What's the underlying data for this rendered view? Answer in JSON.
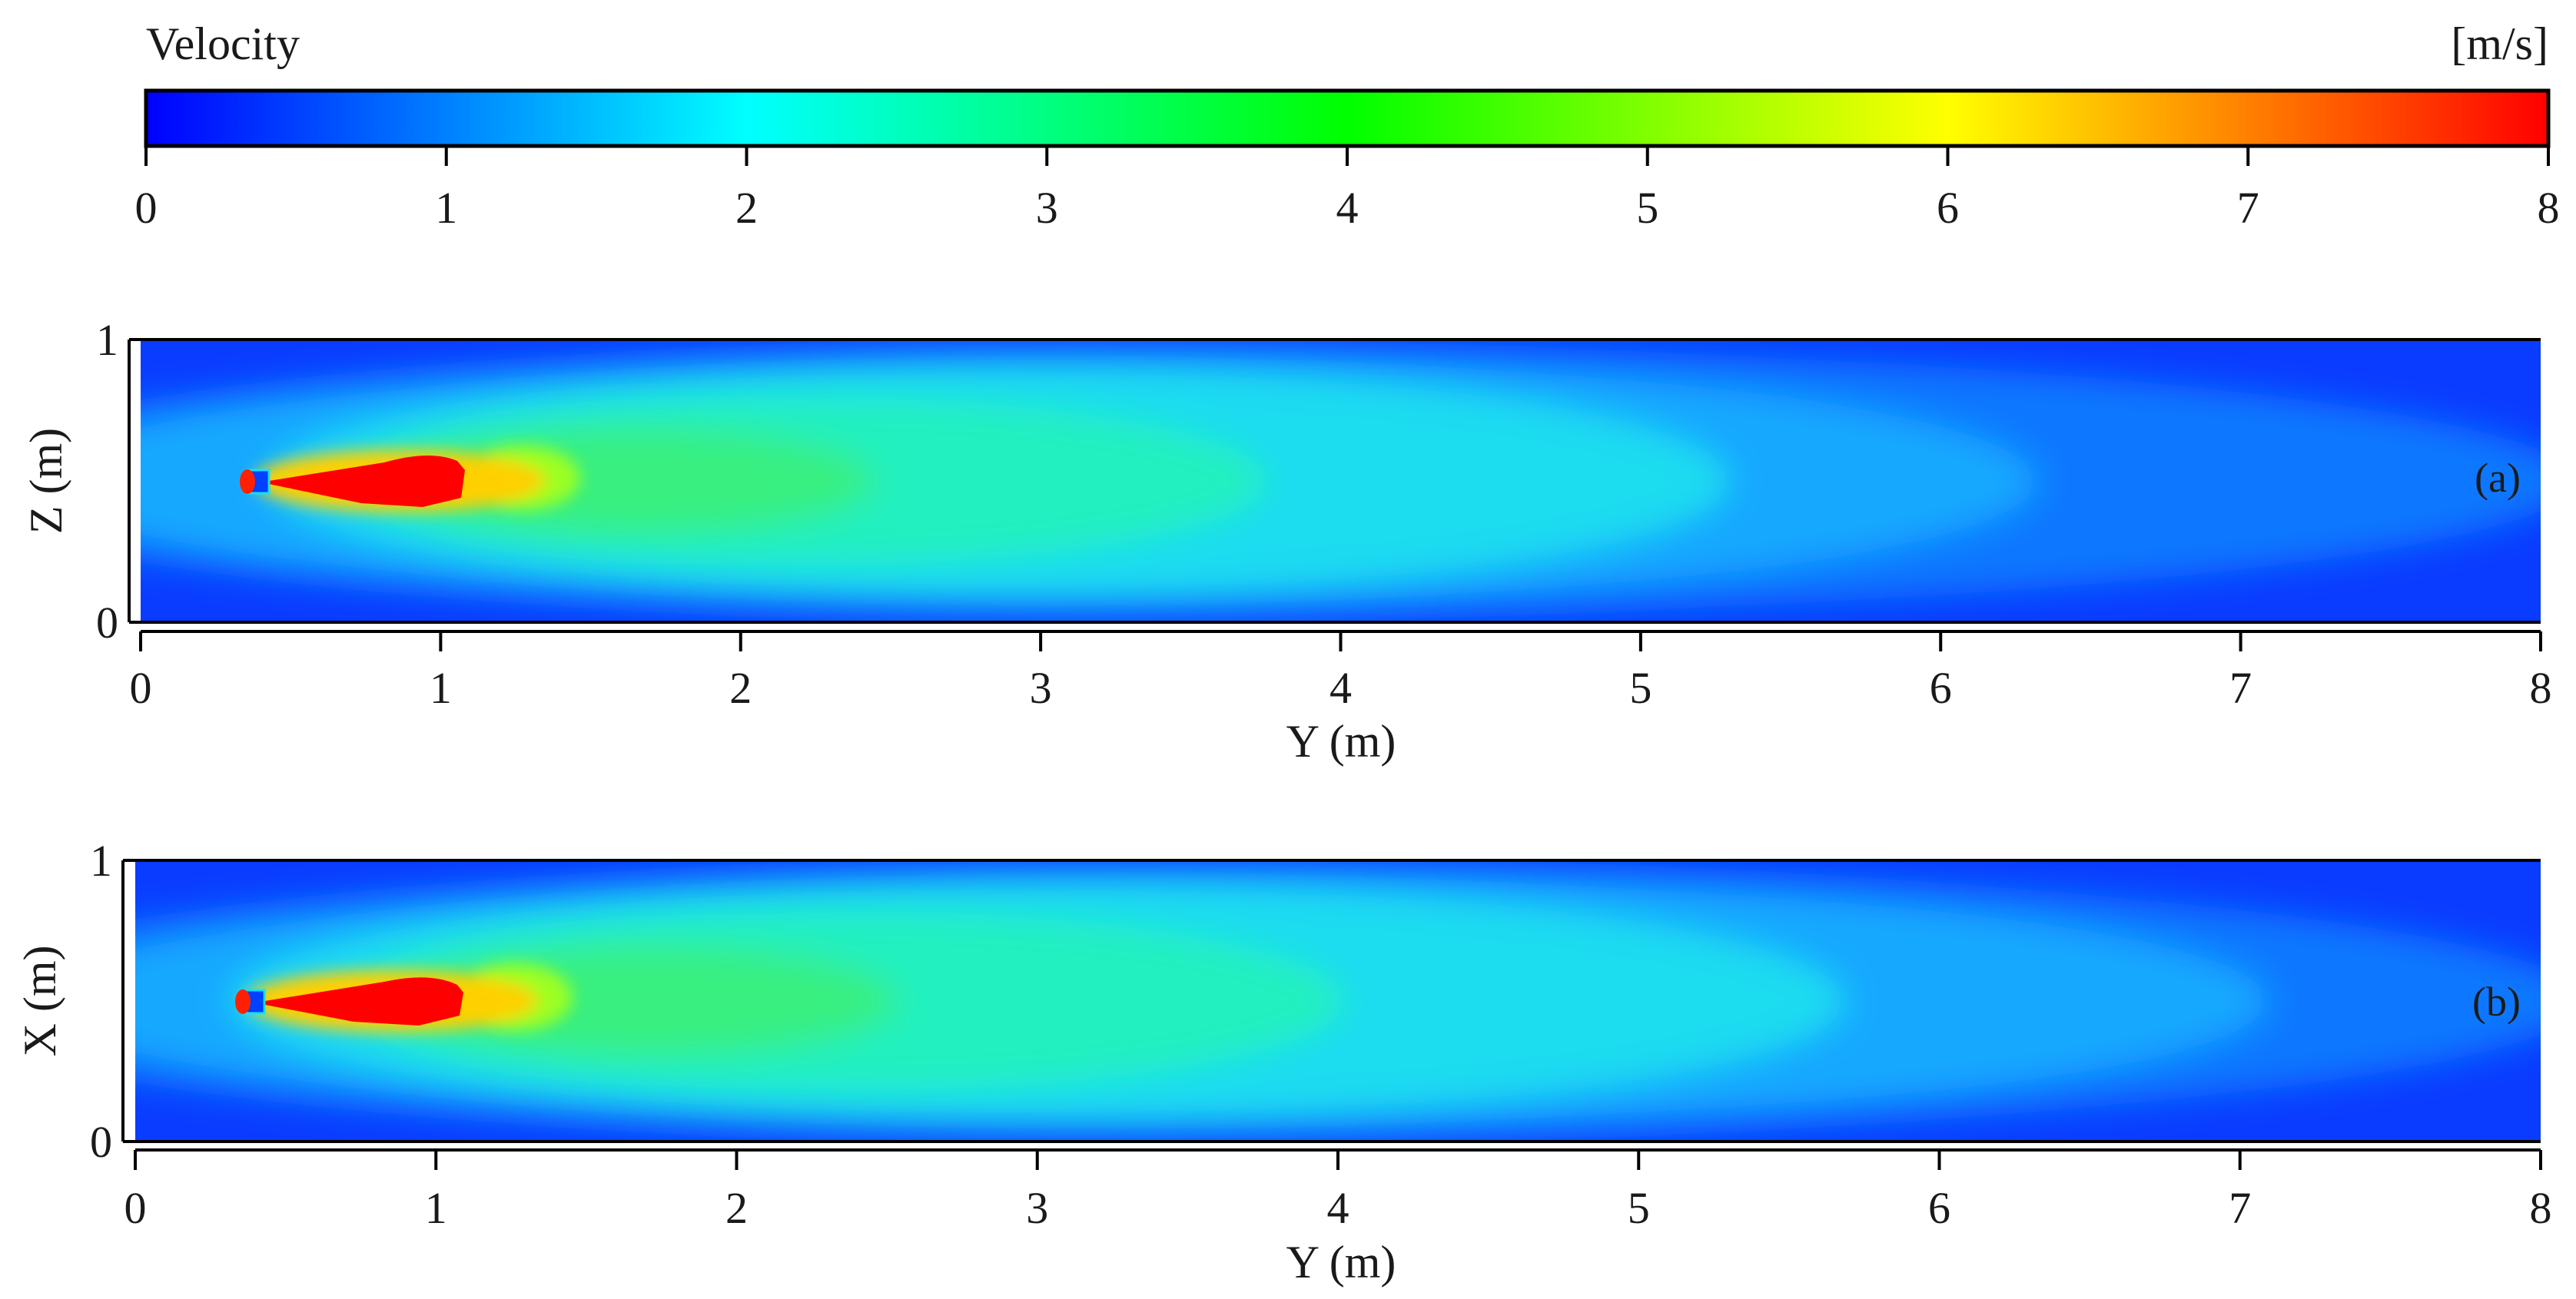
{
  "chart_data": [
    {
      "type": "colorbar",
      "title": "Velocity",
      "unit": "[m/s]",
      "range": [
        0,
        8
      ],
      "ticks": [
        "0",
        "1",
        "2",
        "3",
        "4",
        "5",
        "6",
        "7",
        "8"
      ],
      "colormap": [
        "#0000ff",
        "#0080ff",
        "#00ffff",
        "#00ff80",
        "#00ff00",
        "#80ff00",
        "#ffff00",
        "#ff8000",
        "#ff0000"
      ]
    },
    {
      "type": "heatmap",
      "panel_label": "(a)",
      "xlabel": "Y (m)",
      "ylabel": "Z (m)",
      "xlim": [
        0,
        8
      ],
      "ylim": [
        0,
        1
      ],
      "xticks": [
        "0",
        "1",
        "2",
        "3",
        "4",
        "5",
        "6",
        "7",
        "8"
      ],
      "yticks": [
        "0",
        "1"
      ],
      "nozzle": {
        "y": 0.4,
        "z": 0.5
      },
      "jet_centerline": [
        {
          "y": 0.4,
          "v": 8.0
        },
        {
          "y": 1.0,
          "v": 7.5
        },
        {
          "y": 1.2,
          "v": 5.5
        },
        {
          "y": 1.5,
          "v": 4.2
        },
        {
          "y": 2.0,
          "v": 3.8
        },
        {
          "y": 3.0,
          "v": 2.8
        },
        {
          "y": 4.0,
          "v": 2.4
        },
        {
          "y": 5.0,
          "v": 1.9
        },
        {
          "y": 6.0,
          "v": 1.5
        },
        {
          "y": 7.0,
          "v": 1.2
        },
        {
          "y": 8.0,
          "v": 0.6
        }
      ]
    },
    {
      "type": "heatmap",
      "panel_label": "(b)",
      "xlabel": "Y (m)",
      "ylabel": "X (m)",
      "xlim": [
        0,
        8
      ],
      "ylim": [
        0,
        1
      ],
      "xticks": [
        "0",
        "1",
        "2",
        "3",
        "4",
        "5",
        "6",
        "7",
        "8"
      ],
      "yticks": [
        "0",
        "1"
      ],
      "nozzle": {
        "y": 0.4,
        "x": 0.5
      },
      "jet_centerline": [
        {
          "y": 0.4,
          "v": 8.0
        },
        {
          "y": 1.0,
          "v": 7.5
        },
        {
          "y": 1.2,
          "v": 5.5
        },
        {
          "y": 1.5,
          "v": 4.3
        },
        {
          "y": 2.0,
          "v": 3.9
        },
        {
          "y": 3.0,
          "v": 3.0
        },
        {
          "y": 4.0,
          "v": 2.6
        },
        {
          "y": 5.0,
          "v": 2.0
        },
        {
          "y": 6.0,
          "v": 1.6
        },
        {
          "y": 7.0,
          "v": 1.2
        },
        {
          "y": 8.0,
          "v": 0.6
        }
      ]
    }
  ]
}
